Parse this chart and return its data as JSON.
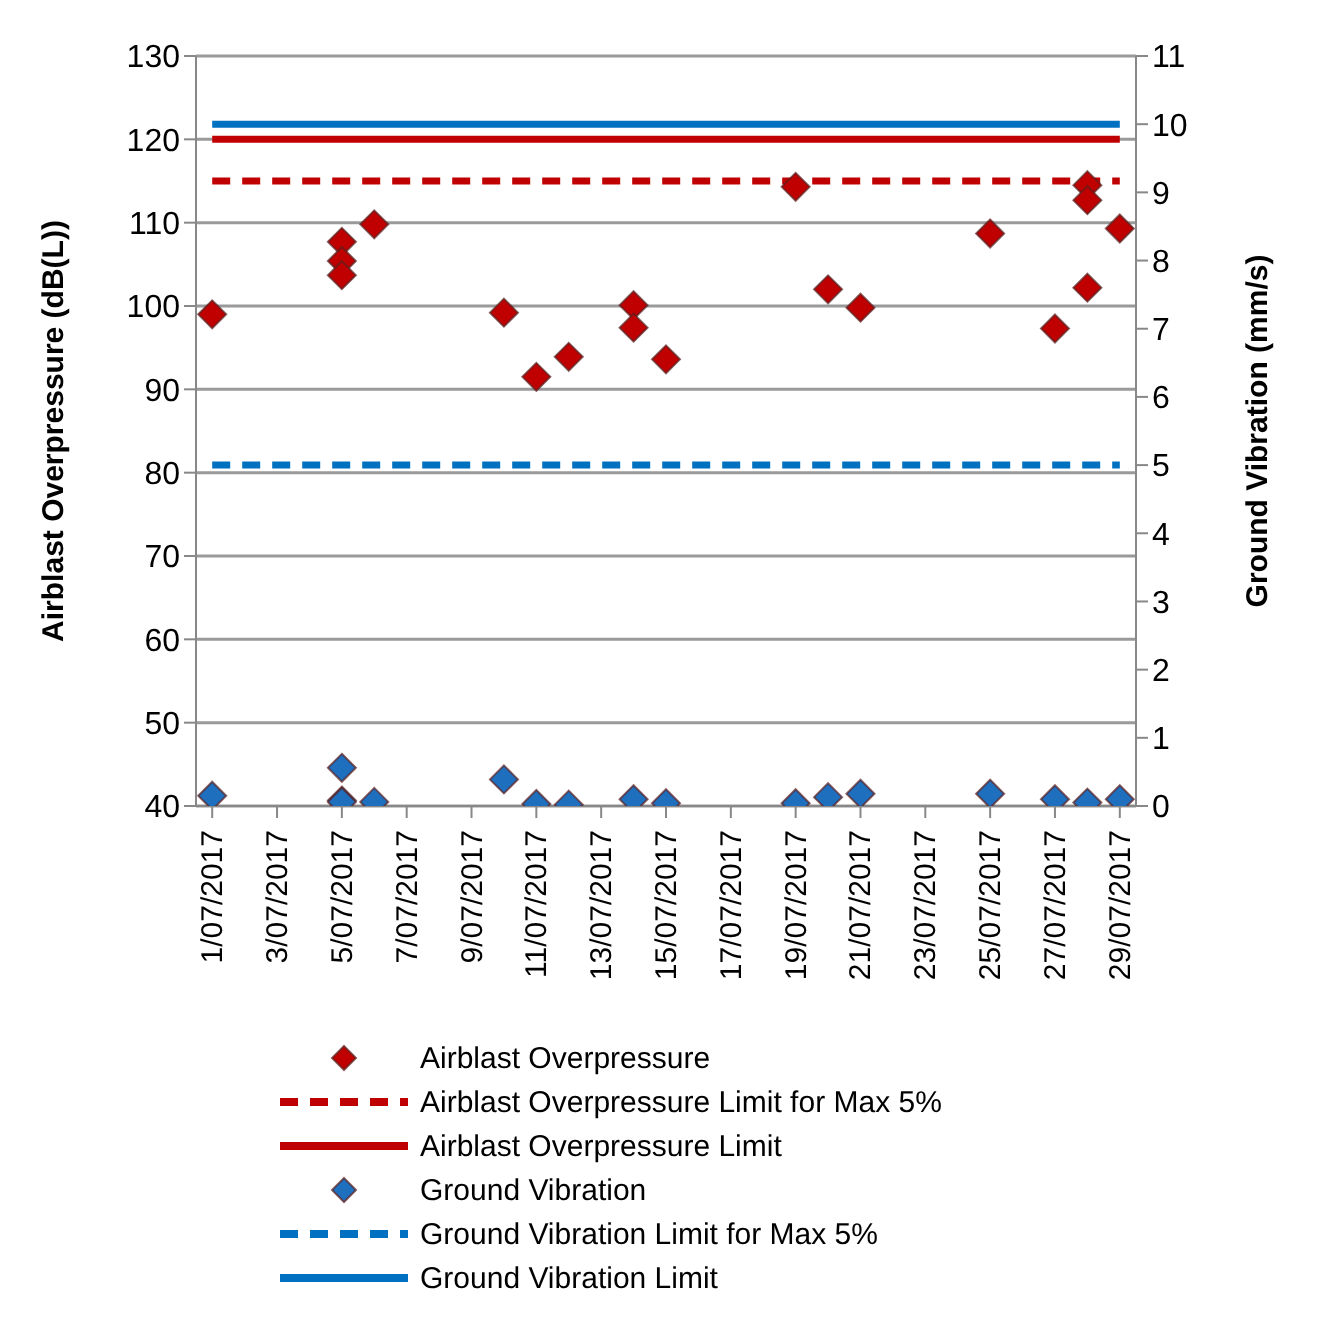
{
  "chart_data": {
    "type": "scatter",
    "ylabel": "Airblast Overpressure (dB(L))",
    "y2label": "Ground Vibration (mm/s)",
    "xlim": [
      "2017-06-30T12:00",
      "2017-07-29T12:00"
    ],
    "xticks": [
      {
        "value": "2017-07-01",
        "label": "1/07/2017"
      },
      {
        "value": "2017-07-03",
        "label": "3/07/2017"
      },
      {
        "value": "2017-07-05",
        "label": "5/07/2017"
      },
      {
        "value": "2017-07-07",
        "label": "7/07/2017"
      },
      {
        "value": "2017-07-09",
        "label": "9/07/2017"
      },
      {
        "value": "2017-07-11",
        "label": "11/07/2017"
      },
      {
        "value": "2017-07-13",
        "label": "13/07/2017"
      },
      {
        "value": "2017-07-15",
        "label": "15/07/2017"
      },
      {
        "value": "2017-07-17",
        "label": "17/07/2017"
      },
      {
        "value": "2017-07-19",
        "label": "19/07/2017"
      },
      {
        "value": "2017-07-21",
        "label": "21/07/2017"
      },
      {
        "value": "2017-07-23",
        "label": "23/07/2017"
      },
      {
        "value": "2017-07-25",
        "label": "25/07/2017"
      },
      {
        "value": "2017-07-27",
        "label": "27/07/2017"
      },
      {
        "value": "2017-07-29",
        "label": "29/07/2017"
      }
    ],
    "ylim": [
      40,
      130
    ],
    "yticks": [
      40,
      50,
      60,
      70,
      80,
      90,
      100,
      110,
      120,
      130
    ],
    "y2lim": [
      0,
      11
    ],
    "y2ticks": [
      0,
      1,
      2,
      3,
      4,
      5,
      6,
      7,
      8,
      9,
      10,
      11
    ],
    "grid": "y",
    "legend": "bottom",
    "series": [
      {
        "name": "Airblast Overpressure",
        "marker": "diamond",
        "color": "#c00000",
        "axis": "y",
        "x": [
          "2017-07-01",
          "2017-07-05",
          "2017-07-05",
          "2017-07-05",
          "2017-07-06",
          "2017-07-10",
          "2017-07-11",
          "2017-07-12",
          "2017-07-14",
          "2017-07-14",
          "2017-07-15",
          "2017-07-19",
          "2017-07-20",
          "2017-07-21",
          "2017-07-25",
          "2017-07-27",
          "2017-07-28",
          "2017-07-28",
          "2017-07-28",
          "2017-07-29"
        ],
        "values": [
          99,
          107.7,
          105.4,
          103.7,
          109.8,
          99.2,
          91.5,
          93.9,
          100.1,
          97.4,
          93.6,
          114.3,
          102,
          99.8,
          108.7,
          97.3,
          114.5,
          112.7,
          102.2,
          109.3
        ]
      },
      {
        "name": "Airblast Overpressure Limit for Max 5%",
        "type": "line",
        "marker": "none",
        "line_style": "dashed",
        "color": "#c00000",
        "axis": "y",
        "x": [
          "2017-07-01",
          "2017-07-29"
        ],
        "values": [
          115,
          115
        ]
      },
      {
        "name": "Airblast Overpressure Limit",
        "type": "line",
        "marker": "none",
        "line_style": "solid",
        "color": "#c00000",
        "axis": "y",
        "x": [
          "2017-07-01",
          "2017-07-29"
        ],
        "values": [
          120,
          120
        ]
      },
      {
        "name": "Ground Vibration",
        "marker": "diamond",
        "color": "#1f6fbf",
        "axis": "y2",
        "x": [
          "2017-07-01",
          "2017-07-05",
          "2017-07-05",
          "2017-07-05",
          "2017-07-06",
          "2017-07-10",
          "2017-07-11",
          "2017-07-12",
          "2017-07-14",
          "2017-07-15",
          "2017-07-19",
          "2017-07-20",
          "2017-07-21",
          "2017-07-25",
          "2017-07-27",
          "2017-07-28",
          "2017-07-29"
        ],
        "values": [
          0.15,
          0.56,
          0.08,
          0.06,
          0.06,
          0.39,
          0.03,
          0.02,
          0.1,
          0.04,
          0.04,
          0.13,
          0.18,
          0.18,
          0.1,
          0.05,
          0.1
        ]
      },
      {
        "name": "Ground Vibration Limit for Max 5%",
        "type": "line",
        "marker": "none",
        "line_style": "dashed",
        "color": "#0070c0",
        "axis": "y2",
        "x": [
          "2017-07-01",
          "2017-07-29"
        ],
        "values": [
          5,
          5
        ]
      },
      {
        "name": "Ground Vibration Limit",
        "type": "line",
        "marker": "none",
        "line_style": "solid",
        "color": "#0070c0",
        "axis": "y2",
        "x": [
          "2017-07-01",
          "2017-07-29"
        ],
        "values": [
          10,
          10
        ]
      }
    ]
  }
}
